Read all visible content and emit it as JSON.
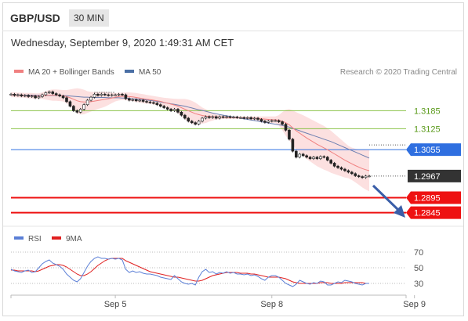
{
  "header": {
    "pair": "GBP/USD",
    "timeframe": "30 MIN",
    "datetime": "Wednesday, September 9, 2020 1:49:31 AM CET"
  },
  "chart_data": [
    {
      "type": "line",
      "title": "",
      "legend": [
        {
          "name": "MA 20 + Bollinger Bands",
          "color": "#f08080"
        },
        {
          "name": "MA 50",
          "color": "#4a6fa5"
        }
      ],
      "credit": "Research © 2020 Trading Central",
      "ylim": [
        1.281,
        1.328
      ],
      "x_ticks": [
        {
          "label": "Sep 5",
          "i": 30
        },
        {
          "label": "Sep 8",
          "i": 75
        },
        {
          "label": "Sep 9",
          "i": 116
        }
      ],
      "levels": [
        {
          "value": 1.3185,
          "label": "1.3185",
          "type": "resistance",
          "color": "#8bc34a"
        },
        {
          "value": 1.3125,
          "label": "1.3125",
          "type": "resistance",
          "color": "#8bc34a"
        },
        {
          "value": 1.3055,
          "label": "1.3055",
          "type": "pivot",
          "color": "#2f6fe0"
        },
        {
          "value": 1.2967,
          "label": "1.2967",
          "type": "current",
          "color": "#333333"
        },
        {
          "value": 1.2895,
          "label": "1.2895",
          "type": "support",
          "color": "#ee1111"
        },
        {
          "value": 1.2845,
          "label": "1.2845",
          "type": "support",
          "color": "#ee1111"
        }
      ],
      "price_series": [
        1.324,
        1.3236,
        1.3238,
        1.3234,
        1.3236,
        1.3232,
        1.3234,
        1.3228,
        1.3232,
        1.3238,
        1.3245,
        1.3248,
        1.3242,
        1.3238,
        1.3234,
        1.3228,
        1.3215,
        1.32,
        1.3185,
        1.318,
        1.319,
        1.3205,
        1.322,
        1.323,
        1.324,
        1.3236,
        1.324,
        1.3238,
        1.3236,
        1.3238,
        1.3238,
        1.324,
        1.3238,
        1.3225,
        1.322,
        1.3222,
        1.3218,
        1.322,
        1.3216,
        1.3214,
        1.3212,
        1.321,
        1.3205,
        1.32,
        1.3195,
        1.319,
        1.3185,
        1.319,
        1.318,
        1.317,
        1.316,
        1.315,
        1.3145,
        1.314,
        1.315,
        1.316,
        1.3165,
        1.3162,
        1.3165,
        1.316,
        1.3165,
        1.3163,
        1.3165,
        1.3163,
        1.3164,
        1.3162,
        1.3162,
        1.316,
        1.3162,
        1.3158,
        1.316,
        1.3156,
        1.315,
        1.3146,
        1.315,
        1.3152,
        1.3152,
        1.3148,
        1.314,
        1.312,
        1.309,
        1.305,
        1.303,
        1.304,
        1.3035,
        1.303,
        1.3025,
        1.303,
        1.3025,
        1.3032,
        1.303,
        1.302,
        1.301,
        1.3,
        1.2995,
        1.299,
        1.2985,
        1.298,
        1.2975,
        1.2968,
        1.2965,
        1.2962,
        1.2967,
        1.2967
      ],
      "ma20": [
        1.3238,
        1.3238,
        1.3237,
        1.3237,
        1.3236,
        1.3235,
        1.3235,
        1.3234,
        1.3234,
        1.3235,
        1.3236,
        1.3237,
        1.3237,
        1.3237,
        1.3236,
        1.3235,
        1.3232,
        1.3228,
        1.3223,
        1.3218,
        1.3215,
        1.3214,
        1.3214,
        1.3215,
        1.3217,
        1.3219,
        1.3221,
        1.3223,
        1.3225,
        1.3227,
        1.323,
        1.3232,
        1.3233,
        1.3233,
        1.3232,
        1.3231,
        1.3229,
        1.3227,
        1.3225,
        1.3223,
        1.3222,
        1.322,
        1.3218,
        1.3216,
        1.3213,
        1.321,
        1.3207,
        1.3204,
        1.32,
        1.3195,
        1.319,
        1.3185,
        1.318,
        1.3175,
        1.3172,
        1.3169,
        1.3167,
        1.3166,
        1.3165,
        1.3164,
        1.3163,
        1.3163,
        1.3162,
        1.3162,
        1.3162,
        1.3162,
        1.3162,
        1.3161,
        1.3161,
        1.316,
        1.316,
        1.3159,
        1.3158,
        1.3157,
        1.3156,
        1.3155,
        1.3155,
        1.3153,
        1.315,
        1.3145,
        1.3138,
        1.3128,
        1.3118,
        1.311,
        1.3102,
        1.3094,
        1.3087,
        1.308,
        1.3073,
        1.3067,
        1.3061,
        1.3055,
        1.3048,
        1.3041,
        1.3034,
        1.3027,
        1.302,
        1.3014,
        1.3008,
        1.3002,
        1.2997,
        1.2992,
        1.2988,
        1.2985
      ],
      "band_upper": [
        1.3246,
        1.3246,
        1.3245,
        1.3245,
        1.3244,
        1.3244,
        1.3244,
        1.3243,
        1.3243,
        1.3246,
        1.325,
        1.3254,
        1.3256,
        1.3256,
        1.3255,
        1.3254,
        1.3254,
        1.3256,
        1.3258,
        1.326,
        1.3258,
        1.3255,
        1.325,
        1.3248,
        1.3247,
        1.3247,
        1.3248,
        1.3248,
        1.3246,
        1.3244,
        1.3244,
        1.3245,
        1.3245,
        1.3246,
        1.3246,
        1.3245,
        1.3244,
        1.3242,
        1.324,
        1.3238,
        1.3236,
        1.3234,
        1.3232,
        1.323,
        1.3228,
        1.3227,
        1.3226,
        1.3225,
        1.3224,
        1.3224,
        1.3224,
        1.3222,
        1.3218,
        1.3212,
        1.3204,
        1.3196,
        1.319,
        1.3183,
        1.3178,
        1.3172,
        1.317,
        1.3168,
        1.3167,
        1.3166,
        1.3166,
        1.3166,
        1.3166,
        1.3166,
        1.3166,
        1.3166,
        1.3166,
        1.3166,
        1.3166,
        1.3166,
        1.3166,
        1.3166,
        1.3166,
        1.317,
        1.318,
        1.3188,
        1.319,
        1.3186,
        1.318,
        1.3175,
        1.317,
        1.3164,
        1.3158,
        1.3152,
        1.3146,
        1.314,
        1.3134,
        1.3126,
        1.3118,
        1.3108,
        1.3098,
        1.3088,
        1.3078,
        1.3068,
        1.3062,
        1.3058,
        1.3056,
        1.3055,
        1.3054,
        1.3054
      ],
      "band_lower": [
        1.323,
        1.323,
        1.3229,
        1.3229,
        1.3228,
        1.3226,
        1.3226,
        1.3225,
        1.3225,
        1.3224,
        1.3222,
        1.322,
        1.3218,
        1.3218,
        1.3217,
        1.3216,
        1.321,
        1.32,
        1.3188,
        1.3176,
        1.3172,
        1.3173,
        1.3178,
        1.3182,
        1.3187,
        1.3191,
        1.3194,
        1.3198,
        1.3204,
        1.321,
        1.3216,
        1.3219,
        1.3221,
        1.322,
        1.3218,
        1.3217,
        1.3214,
        1.3212,
        1.321,
        1.3208,
        1.3208,
        1.3206,
        1.3204,
        1.3202,
        1.3198,
        1.3193,
        1.3188,
        1.3183,
        1.3176,
        1.3166,
        1.3156,
        1.3148,
        1.3142,
        1.3138,
        1.314,
        1.3142,
        1.3144,
        1.3149,
        1.3152,
        1.3156,
        1.3156,
        1.3158,
        1.3157,
        1.3158,
        1.3158,
        1.3158,
        1.3158,
        1.3156,
        1.3156,
        1.3154,
        1.3154,
        1.3152,
        1.315,
        1.3148,
        1.3146,
        1.3144,
        1.3144,
        1.3136,
        1.312,
        1.3102,
        1.3086,
        1.307,
        1.3056,
        1.3045,
        1.3034,
        1.3024,
        1.3016,
        1.3008,
        1.3,
        1.2994,
        1.2988,
        1.2984,
        1.2978,
        1.2974,
        1.297,
        1.2966,
        1.2962,
        1.296,
        1.2954,
        1.2946,
        1.2938,
        1.2929,
        1.2922,
        1.2916
      ],
      "ma50": [
        1.3238,
        1.3238,
        1.3238,
        1.3237,
        1.3237,
        1.3237,
        1.3237,
        1.3236,
        1.3236,
        1.3236,
        1.3236,
        1.3236,
        1.3236,
        1.3236,
        1.3236,
        1.3235,
        1.3235,
        1.3234,
        1.3233,
        1.3232,
        1.3231,
        1.323,
        1.323,
        1.3229,
        1.3229,
        1.3229,
        1.3229,
        1.3229,
        1.3228,
        1.3228,
        1.3228,
        1.3228,
        1.3227,
        1.3227,
        1.3226,
        1.3225,
        1.3224,
        1.3223,
        1.3222,
        1.3221,
        1.3219,
        1.3218,
        1.3216,
        1.3214,
        1.3212,
        1.321,
        1.3208,
        1.3206,
        1.3204,
        1.3202,
        1.32,
        1.3197,
        1.3194,
        1.3191,
        1.3188,
        1.3186,
        1.3183,
        1.318,
        1.3177,
        1.3175,
        1.3172,
        1.317,
        1.3168,
        1.3166,
        1.3164,
        1.3162,
        1.316,
        1.3158,
        1.3156,
        1.3154,
        1.3152,
        1.315,
        1.3148,
        1.3146,
        1.3144,
        1.3142,
        1.314,
        1.3138,
        1.3136,
        1.3133,
        1.313,
        1.3126,
        1.3122,
        1.3118,
        1.3114,
        1.311,
        1.3106,
        1.3102,
        1.3098,
        1.3094,
        1.309,
        1.3086,
        1.3082,
        1.3077,
        1.3072,
        1.3067,
        1.3062,
        1.3057,
        1.3052,
        1.3047,
        1.3042,
        1.3037,
        1.3032,
        1.3027
      ]
    },
    {
      "type": "line",
      "title": "",
      "legend": [
        {
          "name": "RSI",
          "color": "#5b7fd6"
        },
        {
          "name": "9MA",
          "color": "#e02020"
        }
      ],
      "ylim": [
        20,
        80
      ],
      "levels": [
        {
          "value": 70,
          "label": "70"
        },
        {
          "value": 50,
          "label": "50"
        },
        {
          "value": 30,
          "label": "30"
        }
      ],
      "rsi": [
        48,
        46,
        45,
        44,
        46,
        47,
        44,
        45,
        50,
        55,
        58,
        60,
        56,
        54,
        52,
        48,
        42,
        38,
        34,
        32,
        36,
        44,
        52,
        58,
        62,
        64,
        62,
        62,
        61,
        62,
        61,
        62,
        60,
        48,
        44,
        46,
        44,
        45,
        43,
        42,
        42,
        41,
        40,
        38,
        37,
        36,
        35,
        40,
        36,
        32,
        30,
        29,
        30,
        28,
        38,
        45,
        48,
        44,
        45,
        42,
        44,
        43,
        45,
        43,
        44,
        42,
        42,
        41,
        42,
        40,
        41,
        39,
        36,
        34,
        38,
        40,
        40,
        38,
        34,
        30,
        28,
        26,
        29,
        34,
        32,
        30,
        29,
        31,
        30,
        33,
        32,
        28,
        28,
        30,
        32,
        31,
        34,
        33,
        32,
        30,
        29,
        28,
        30,
        30
      ],
      "ma9": [
        47,
        47,
        46,
        46,
        46,
        46,
        46,
        45,
        46,
        48,
        50,
        52,
        53,
        54,
        54,
        53,
        51,
        48,
        45,
        42,
        40,
        40,
        42,
        45,
        49,
        53,
        56,
        59,
        61,
        62,
        62,
        62,
        62,
        59,
        57,
        55,
        53,
        51,
        49,
        47,
        45,
        44,
        43,
        42,
        41,
        40,
        39,
        38,
        38,
        37,
        36,
        35,
        34,
        33,
        33,
        34,
        36,
        38,
        40,
        41,
        42,
        43,
        44,
        44,
        44,
        44,
        43,
        43,
        43,
        42,
        42,
        41,
        40,
        39,
        38,
        38,
        38,
        38,
        37,
        36,
        34,
        32,
        31,
        30,
        30,
        30,
        30,
        30,
        30,
        31,
        31,
        31,
        30,
        30,
        30,
        30,
        31,
        31,
        31,
        31,
        31,
        31,
        30,
        30
      ]
    }
  ]
}
